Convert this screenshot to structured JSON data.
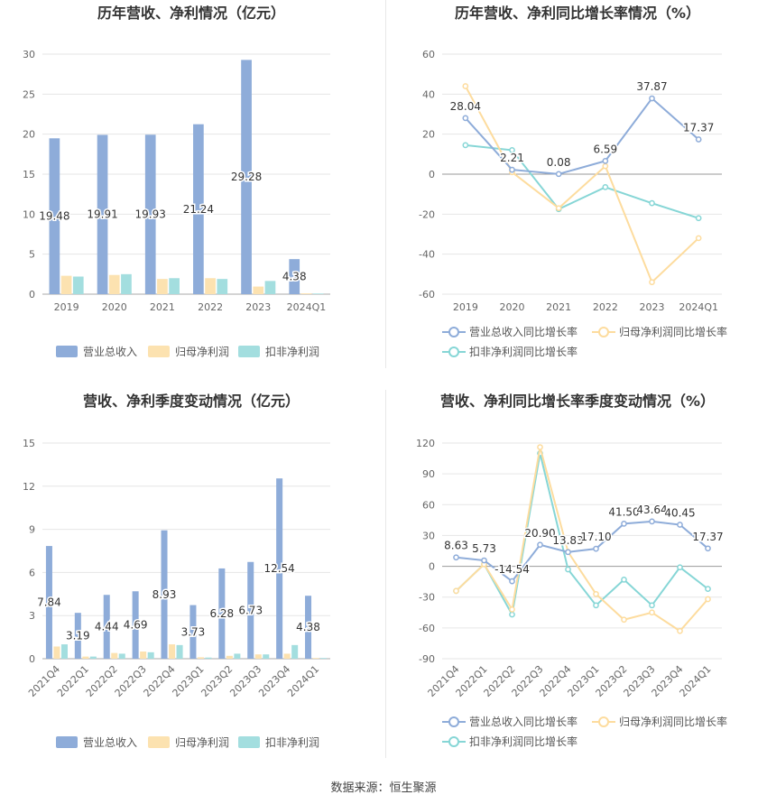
{
  "colors": {
    "revenue": "#8eacd9",
    "net_profit": "#fce2b0",
    "deducted_profit": "#a3dedf",
    "revenue_line": "#8eacd9",
    "net_profit_line": "#fddc9e",
    "deducted_profit_line": "#86d6d6",
    "axis_text": "#666666",
    "grid": "#e6e6e6",
    "title": "#333333"
  },
  "source_text": "数据来源：恒生聚源",
  "chart_data": [
    {
      "id": "annual-bar",
      "type": "bar",
      "title": "历年营收、净利情况（亿元）",
      "categories": [
        "2019",
        "2020",
        "2021",
        "2022",
        "2023",
        "2024Q1"
      ],
      "ylim": [
        0,
        30
      ],
      "yticks": [
        0,
        5,
        10,
        15,
        20,
        25,
        30
      ],
      "grid": true,
      "legend_position": "bottom",
      "series": [
        {
          "name": "营业总收入",
          "values": [
            19.48,
            19.91,
            19.93,
            21.24,
            29.28,
            4.38
          ],
          "labels": [
            "19.48",
            "19.91",
            "19.93",
            "21.24",
            "29.28",
            "4.38"
          ]
        },
        {
          "name": "归母净利润",
          "values": [
            2.3,
            2.4,
            1.9,
            2.0,
            0.95,
            0.1
          ]
        },
        {
          "name": "扣非净利润",
          "values": [
            2.2,
            2.5,
            2.0,
            1.9,
            1.65,
            0.08
          ]
        }
      ]
    },
    {
      "id": "annual-growth",
      "type": "line",
      "title": "历年营收、净利同比增长率情况（%）",
      "categories": [
        "2019",
        "2020",
        "2021",
        "2022",
        "2023",
        "2024Q1"
      ],
      "ylim": [
        -60,
        60
      ],
      "yticks": [
        -60,
        -40,
        -20,
        0,
        20,
        40,
        60
      ],
      "grid": true,
      "legend_position": "bottom",
      "series": [
        {
          "name": "营业总收入同比增长率",
          "values": [
            28.04,
            2.21,
            0.08,
            6.59,
            37.87,
            17.37
          ],
          "labels": [
            "28.04",
            "2.21",
            "0.08",
            "6.59",
            "37.87",
            "17.37"
          ]
        },
        {
          "name": "归母净利润同比增长率",
          "values": [
            44,
            1,
            -17,
            4,
            -54,
            -32
          ]
        },
        {
          "name": "扣非净利润同比增长率",
          "values": [
            14.5,
            12,
            -17.5,
            -6.5,
            -14.5,
            -22
          ]
        }
      ]
    },
    {
      "id": "quarterly-bar",
      "type": "bar",
      "title": "营收、净利季度变动情况（亿元）",
      "categories": [
        "2021Q4",
        "2022Q1",
        "2022Q2",
        "2022Q3",
        "2022Q4",
        "2023Q1",
        "2023Q2",
        "2023Q3",
        "2023Q4",
        "2024Q1"
      ],
      "ylim": [
        0,
        15
      ],
      "yticks": [
        0,
        3,
        6,
        9,
        12,
        15
      ],
      "grid": true,
      "legend_position": "bottom",
      "series": [
        {
          "name": "营业总收入",
          "values": [
            7.84,
            3.19,
            4.44,
            4.69,
            8.93,
            3.73,
            6.28,
            6.73,
            12.54,
            4.38
          ],
          "labels": [
            "7.84",
            "3.19",
            "4.44",
            "4.69",
            "8.93",
            "3.73",
            "6.28",
            "6.73",
            "12.54",
            "4.38"
          ]
        },
        {
          "name": "归母净利润",
          "values": [
            0.85,
            0.15,
            0.4,
            0.5,
            1.0,
            0.1,
            0.2,
            0.3,
            0.35,
            0.05
          ]
        },
        {
          "name": "扣非净利润",
          "values": [
            1.0,
            0.15,
            0.35,
            0.45,
            0.95,
            0.08,
            0.35,
            0.3,
            0.95,
            0.05
          ]
        }
      ]
    },
    {
      "id": "quarterly-growth",
      "type": "line",
      "title": "营收、净利同比增长率季度变动情况（%）",
      "categories": [
        "2021Q4",
        "2022Q1",
        "2022Q2",
        "2022Q3",
        "2022Q4",
        "2023Q1",
        "2023Q2",
        "2023Q3",
        "2023Q4",
        "2024Q1"
      ],
      "ylim": [
        -90,
        120
      ],
      "yticks": [
        -90,
        -60,
        -30,
        0,
        30,
        60,
        90,
        120
      ],
      "grid": true,
      "legend_position": "bottom",
      "series": [
        {
          "name": "营业总收入同比增长率",
          "values": [
            8.63,
            5.73,
            -14.54,
            20.9,
            13.83,
            17.1,
            41.5,
            43.64,
            40.45,
            17.37
          ],
          "labels": [
            "8.63",
            "5.73",
            "-14.54",
            "20.90",
            "13.83",
            "17.10",
            "41.50",
            "43.64",
            "40.45",
            "17.37"
          ]
        },
        {
          "name": "归母净利润同比增长率",
          "values": [
            -24,
            2,
            -42,
            116,
            14,
            -27,
            -52,
            -45,
            -63,
            -32
          ]
        },
        {
          "name": "扣非净利润同比增长率",
          "values": [
            -24,
            2,
            -47,
            110,
            -3,
            -38,
            -13,
            -38,
            -1,
            -22
          ]
        }
      ]
    }
  ]
}
